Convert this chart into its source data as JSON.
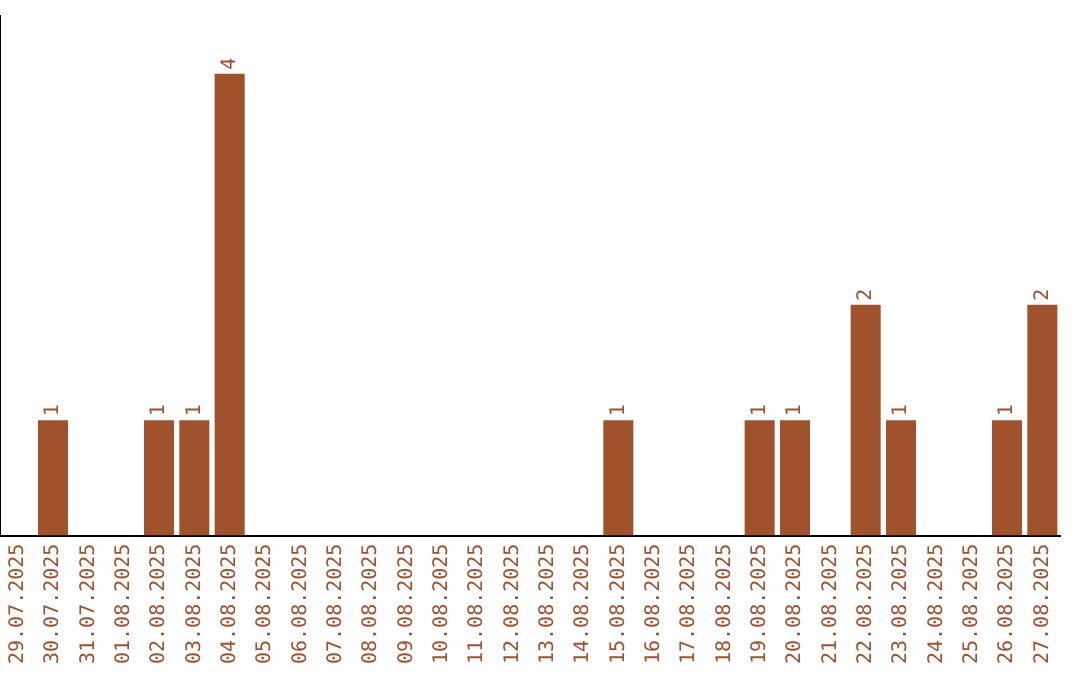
{
  "chart_data": {
    "type": "bar",
    "categories": [
      "29.07.2025",
      "30.07.2025",
      "31.07.2025",
      "01.08.2025",
      "02.08.2025",
      "03.08.2025",
      "04.08.2025",
      "05.08.2025",
      "06.08.2025",
      "07.08.2025",
      "08.08.2025",
      "09.08.2025",
      "10.08.2025",
      "11.08.2025",
      "12.08.2025",
      "13.08.2025",
      "14.08.2025",
      "15.08.2025",
      "16.08.2025",
      "17.08.2025",
      "18.08.2025",
      "19.08.2025",
      "20.08.2025",
      "21.08.2025",
      "22.08.2025",
      "23.08.2025",
      "24.08.2025",
      "25.08.2025",
      "26.08.2025",
      "27.08.2025"
    ],
    "values": [
      0,
      1,
      0,
      0,
      1,
      1,
      4,
      0,
      0,
      0,
      0,
      0,
      0,
      0,
      0,
      0,
      0,
      1,
      0,
      0,
      0,
      1,
      1,
      0,
      2,
      1,
      0,
      0,
      1,
      2
    ],
    "value_labels": [
      null,
      "1",
      null,
      null,
      "1",
      "1",
      "4",
      null,
      null,
      null,
      null,
      null,
      null,
      null,
      null,
      null,
      null,
      "1",
      null,
      null,
      null,
      "1",
      "1",
      null,
      "2",
      "1",
      null,
      null,
      "1",
      "2"
    ],
    "color": "#a0522d",
    "tick_labels": "x",
    "grid": false,
    "legend": false
  }
}
